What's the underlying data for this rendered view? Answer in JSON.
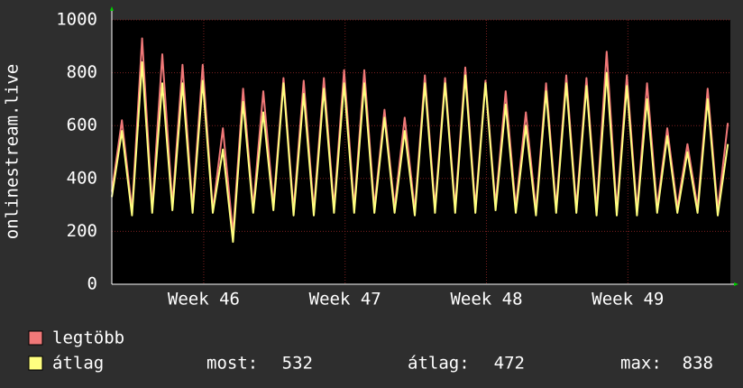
{
  "chart_data": {
    "type": "line",
    "y_label": "onlinestream.live",
    "ylim": [
      0,
      1000
    ],
    "yticks": [
      0,
      200,
      400,
      600,
      800,
      1000
    ],
    "xlim": [
      0,
      61.25
    ],
    "xticks": [
      {
        "value": 9.1,
        "label": "Week 46"
      },
      {
        "value": 23.1,
        "label": "Week 47"
      },
      {
        "value": 37.1,
        "label": "Week 48"
      },
      {
        "value": 51.1,
        "label": "Week 49"
      }
    ],
    "grid": true,
    "series": [
      {
        "name": "legtöbb",
        "color": "#f07878",
        "values": [
          350,
          620,
          280,
          930,
          290,
          870,
          300,
          830,
          290,
          830,
          280,
          590,
          190,
          740,
          290,
          730,
          300,
          780,
          280,
          770,
          280,
          780,
          290,
          810,
          290,
          810,
          290,
          660,
          290,
          630,
          280,
          790,
          290,
          780,
          290,
          820,
          290,
          770,
          300,
          730,
          290,
          650,
          280,
          760,
          290,
          790,
          290,
          780,
          280,
          880,
          280,
          790,
          280,
          760,
          290,
          590,
          290,
          530,
          290,
          740,
          280,
          610
        ]
      },
      {
        "name": "átlag",
        "color": "#ffff80",
        "values": [
          330,
          580,
          260,
          840,
          270,
          760,
          280,
          760,
          270,
          770,
          270,
          510,
          160,
          690,
          270,
          650,
          280,
          760,
          260,
          720,
          260,
          740,
          270,
          760,
          270,
          760,
          270,
          630,
          270,
          580,
          260,
          760,
          270,
          760,
          270,
          790,
          270,
          760,
          280,
          680,
          270,
          600,
          260,
          730,
          270,
          760,
          270,
          750,
          260,
          800,
          260,
          750,
          260,
          700,
          270,
          560,
          270,
          500,
          270,
          700,
          260,
          530
        ]
      }
    ],
    "stats": [
      {
        "label": "most:",
        "value": 532
      },
      {
        "label": "átlag:",
        "value": 472
      },
      {
        "label": "max:",
        "value": 838
      }
    ]
  }
}
